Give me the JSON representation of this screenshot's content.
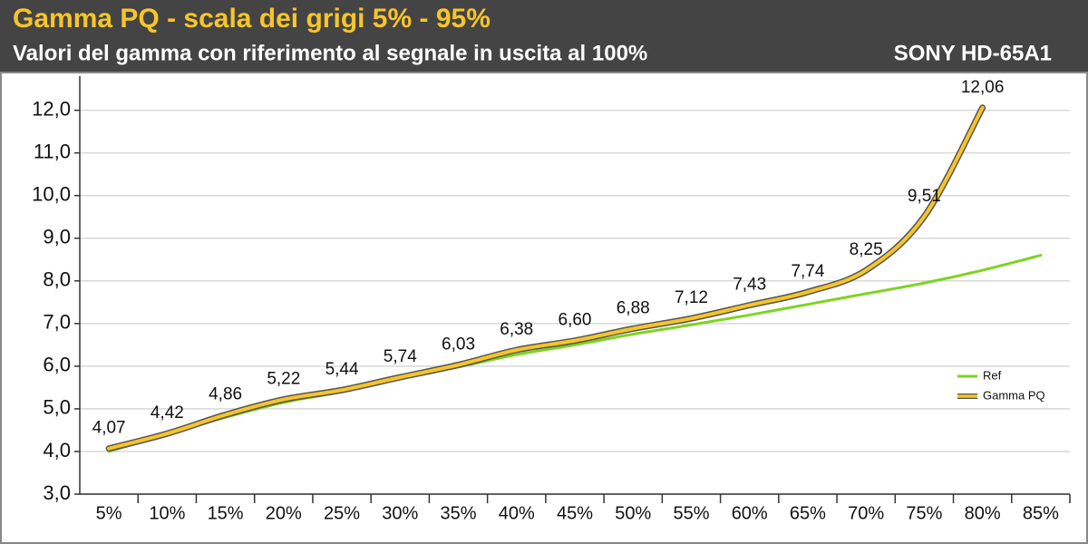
{
  "chart_data": {
    "type": "line",
    "title": "Gamma PQ - scala dei grigi 5% - 95%",
    "subtitle": "Valori del gamma con riferimento al segnale in uscita al 100%",
    "annotation": "SONY HD-65A1",
    "categories": [
      "5%",
      "10%",
      "15%",
      "20%",
      "25%",
      "30%",
      "35%",
      "40%",
      "45%",
      "50%",
      "55%",
      "60%",
      "65%",
      "70%",
      "75%",
      "80%",
      "85%"
    ],
    "series": [
      {
        "name": "Ref",
        "color": "#7ed321",
        "values": [
          4.0,
          4.4,
          4.8,
          5.15,
          5.4,
          5.7,
          5.98,
          6.27,
          6.5,
          6.75,
          6.97,
          7.2,
          7.45,
          7.7,
          7.95,
          8.25,
          8.6
        ]
      },
      {
        "name": "Gamma PQ",
        "color": "#f7c52a",
        "values": [
          4.07,
          4.42,
          4.86,
          5.22,
          5.44,
          5.74,
          6.03,
          6.38,
          6.6,
          6.88,
          7.12,
          7.43,
          7.74,
          8.25,
          9.51,
          12.06,
          null
        ],
        "value_labels": [
          "4,07",
          "4,42",
          "4,86",
          "5,22",
          "5,44",
          "5,74",
          "6,03",
          "6,38",
          "6,60",
          "6,88",
          "7,12",
          "7,43",
          "7,74",
          "8,25",
          "9,51",
          "12,06",
          null
        ]
      }
    ],
    "ylim": [
      3,
      12.8
    ],
    "yticks": [
      {
        "value": 3,
        "label": "3,0"
      },
      {
        "value": 4,
        "label": "4,0"
      },
      {
        "value": 5,
        "label": "5,0"
      },
      {
        "value": 6,
        "label": "6,0"
      },
      {
        "value": 7,
        "label": "7,0"
      },
      {
        "value": 8,
        "label": "8,0"
      },
      {
        "value": 9,
        "label": "9,0"
      },
      {
        "value": 10,
        "label": "10,0"
      },
      {
        "value": 11,
        "label": "11,0"
      },
      {
        "value": 12,
        "label": "12,0"
      }
    ],
    "grid": true,
    "legend": "right"
  }
}
